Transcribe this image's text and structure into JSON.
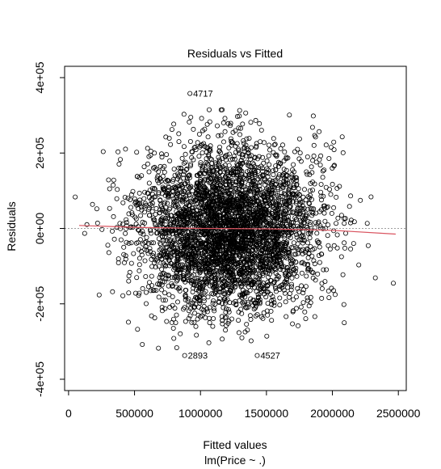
{
  "chart_data": {
    "type": "scatter",
    "title": "Residuals vs Fitted",
    "xlabel": "Fitted values",
    "xlabel_sub": "lm(Price ~ .)",
    "ylabel": "Residuals",
    "xlim": [
      -30000,
      2560000
    ],
    "ylim": [
      -430000,
      430000
    ],
    "x_ticks": [
      0,
      500000,
      1000000,
      1500000,
      2000000,
      2500000
    ],
    "x_tick_labels": [
      "0",
      "500000",
      "1000000",
      "1500000",
      "2000000",
      "2500000"
    ],
    "y_ticks": [
      -400000,
      -200000,
      0,
      200000,
      400000
    ],
    "y_tick_labels": [
      "-4e+05",
      "-2e+05",
      "0e+00",
      "2e+05",
      "4e+05"
    ],
    "reference_line": {
      "y": 0,
      "style": "dotted",
      "color": "#9e9e9e"
    },
    "smoother": {
      "color": "#d9535f",
      "points": [
        [
          80000,
          8000
        ],
        [
          500000,
          3000
        ],
        [
          1000000,
          0
        ],
        [
          1500000,
          -1000
        ],
        [
          2000000,
          -5000
        ],
        [
          2480000,
          -15000
        ]
      ]
    },
    "point_count": 4000,
    "point_distribution": {
      "x_center": 1230000,
      "x_sd": 330000,
      "y_sd": 108000,
      "x_min": 40000,
      "x_max": 2480000
    },
    "labeled_points": [
      {
        "id": "4717",
        "x": 920000,
        "y": 358000
      },
      {
        "id": "2893",
        "x": 880000,
        "y": -337000
      },
      {
        "id": "4527",
        "x": 1430000,
        "y": -337000
      }
    ],
    "legend": "none",
    "grid": false
  }
}
